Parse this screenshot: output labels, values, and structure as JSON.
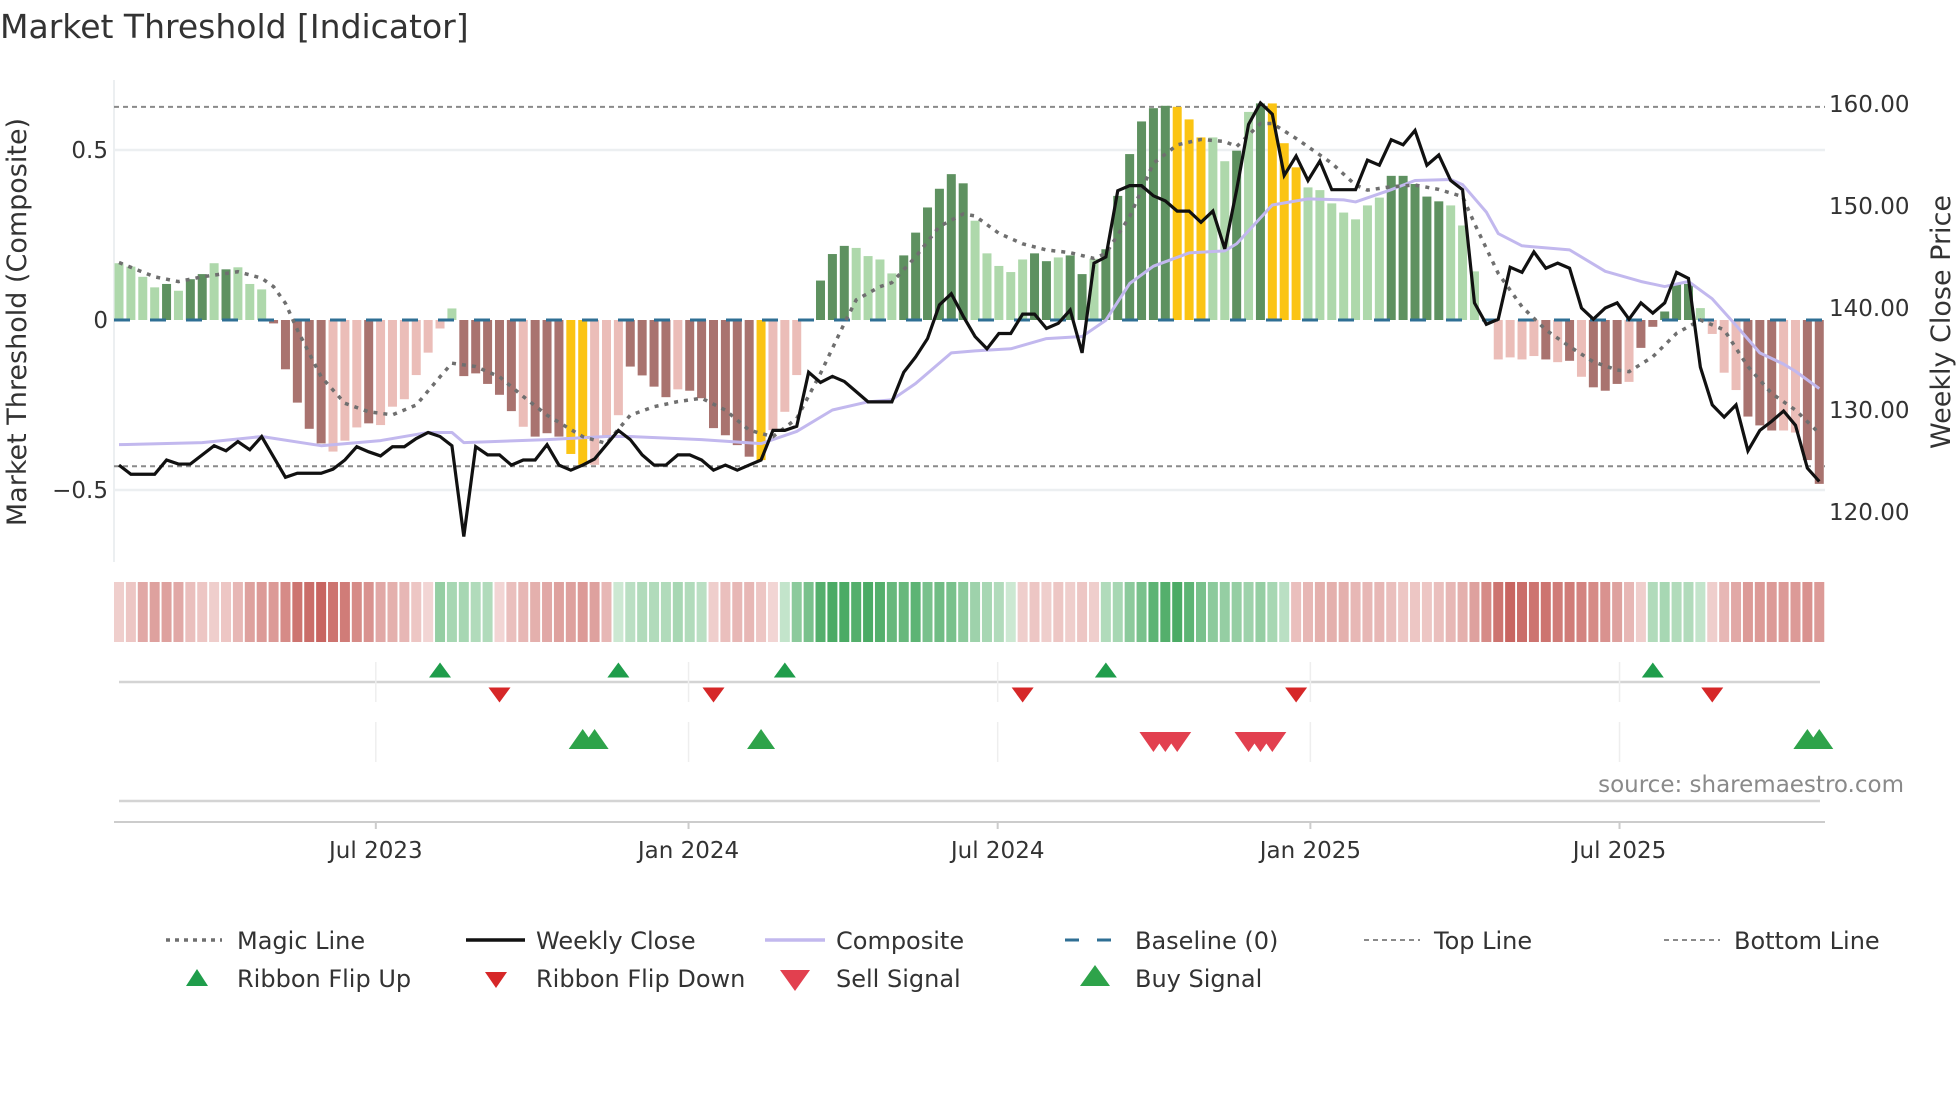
{
  "title": "Market Threshold [Indicator]",
  "source": "source: sharemaestro.com",
  "colors": {
    "bar_dark_pos": "#5e9160",
    "bar_light_pos": "#aed8ab",
    "bar_dark_neg": "#a9736f",
    "bar_light_neg": "#ebbdb8",
    "bar_signal": "#fbc413",
    "weekly_close": "#111111",
    "composite": "#c2b8ee",
    "magic": "#6f6f6f",
    "baseline": "#2f6f94",
    "threshold": "#8a8a8a",
    "flip_up": "#1f9d4b",
    "flip_down": "#d62728",
    "sell": "#e2404f",
    "buy": "#2ea34a"
  },
  "chart_data": {
    "type": "bar+line",
    "title": "Market Threshold [Indicator]",
    "ylabel_left": "Market Threshold (Composite)",
    "ylabel_right": "Weekly Close Price",
    "left_ticks": [
      {
        "value": 0.5,
        "label": "0.5"
      },
      {
        "value": 0,
        "label": "0"
      },
      {
        "value": -0.5,
        "label": "−0.5"
      }
    ],
    "right_ticks": [
      {
        "value": 160,
        "label": "160.00"
      },
      {
        "value": 150,
        "label": "150.00"
      },
      {
        "value": 140,
        "label": "140.00"
      },
      {
        "value": 130,
        "label": "130.00"
      },
      {
        "value": 120,
        "label": "120.00"
      }
    ],
    "x_ticks": [
      {
        "week": 22.6,
        "label": "Jul 2023"
      },
      {
        "week": 48.9,
        "label": "Jan 2024"
      },
      {
        "week": 74.9,
        "label": "Jul 2024"
      },
      {
        "week": 101.2,
        "label": "Jan 2025"
      },
      {
        "week": 127.2,
        "label": "Jul 2025"
      }
    ],
    "top_line": 0.627,
    "bottom_line": -0.43,
    "baseline": 0,
    "composite_bars": [
      0.167,
      0.157,
      0.127,
      0.096,
      0.106,
      0.086,
      0.12,
      0.135,
      0.167,
      0.149,
      0.155,
      0.106,
      0.09,
      -0.01,
      -0.145,
      -0.243,
      -0.32,
      -0.363,
      -0.387,
      -0.355,
      -0.316,
      -0.304,
      -0.309,
      -0.255,
      -0.233,
      -0.162,
      -0.096,
      -0.025,
      0.034,
      -0.165,
      -0.157,
      -0.188,
      -0.22,
      -0.268,
      -0.314,
      -0.343,
      -0.333,
      -0.343,
      -0.394,
      -0.426,
      -0.426,
      -0.345,
      -0.28,
      -0.137,
      -0.163,
      -0.196,
      -0.227,
      -0.204,
      -0.208,
      -0.23,
      -0.318,
      -0.339,
      -0.368,
      -0.402,
      -0.412,
      -0.324,
      -0.27,
      -0.162,
      0.004,
      0.116,
      0.194,
      0.218,
      0.212,
      0.188,
      0.178,
      0.137,
      0.19,
      0.257,
      0.331,
      0.386,
      0.429,
      0.402,
      0.292,
      0.196,
      0.159,
      0.141,
      0.178,
      0.196,
      0.173,
      0.184,
      0.19,
      0.135,
      0.18,
      0.208,
      0.365,
      0.488,
      0.584,
      0.623,
      0.63,
      0.627,
      0.59,
      0.537,
      0.537,
      0.467,
      0.498,
      0.612,
      0.637,
      0.637,
      0.52,
      0.449,
      0.39,
      0.382,
      0.343,
      0.316,
      0.296,
      0.337,
      0.36,
      0.424,
      0.424,
      0.4,
      0.363,
      0.349,
      0.337,
      0.278,
      0.143,
      0,
      -0.116,
      -0.11,
      -0.116,
      -0.106,
      -0.116,
      -0.124,
      -0.12,
      -0.167,
      -0.198,
      -0.208,
      -0.188,
      -0.182,
      -0.082,
      -0.02,
      0.025,
      0.108,
      0.106,
      0.035,
      -0.041,
      -0.155,
      -0.206,
      -0.284,
      -0.31,
      -0.325,
      -0.325,
      -0.331,
      -0.412,
      -0.482
    ],
    "bar_shades": "lllldlddldllldddddllldllllllldddddldddyylllddddlddddddylllldddllllddddddlllllddlddlddddddyyylldldyyyllllllldddddlllllllldldldddldddddlllldddlldddddldyy",
    "weekly_close": [
      124.6,
      123.7,
      123.7,
      123.7,
      125.1,
      124.7,
      124.7,
      125.6,
      126.5,
      126.0,
      126.9,
      126.1,
      127.4,
      125.4,
      123.4,
      123.8,
      123.8,
      123.8,
      124.2,
      125.1,
      126.4,
      125.9,
      125.5,
      126.4,
      126.4,
      127.2,
      127.8,
      127.4,
      126.5,
      117.6,
      126.4,
      125.6,
      125.6,
      124.6,
      125.1,
      125.1,
      126.6,
      124.6,
      124.1,
      124.6,
      125.2,
      126.6,
      128.0,
      127.1,
      125.6,
      124.6,
      124.6,
      125.6,
      125.6,
      125.1,
      124.1,
      124.6,
      124.1,
      124.6,
      125.1,
      128.0,
      128.0,
      128.4,
      133.7,
      132.7,
      133.3,
      132.8,
      131.8,
      130.8,
      130.8,
      130.8,
      133.7,
      135.2,
      137.0,
      140.3,
      141.4,
      139.2,
      137.2,
      136.0,
      137.5,
      137.5,
      139.4,
      139.4,
      138.0,
      138.5,
      139.8,
      135.6,
      144.4,
      145.0,
      151.5,
      152.0,
      152.0,
      151.0,
      150.5,
      149.5,
      149.5,
      148.4,
      149.5,
      145.8,
      151.6,
      158.0,
      160.1,
      159.0,
      153.0,
      154.9,
      152.5,
      154.4,
      151.6,
      151.6,
      151.6,
      154.5,
      154.0,
      156.5,
      156.0,
      157.4,
      154.0,
      155.0,
      152.5,
      151.6,
      140.5,
      138.4,
      138.9,
      144.0,
      143.5,
      145.5,
      143.9,
      144.4,
      143.9,
      140.0,
      138.9,
      140.0,
      140.5,
      138.9,
      140.5,
      139.5,
      140.5,
      143.5,
      142.9,
      134.2,
      130.5,
      129.3,
      130.5,
      126.0,
      128.0,
      128.9,
      129.9,
      128.5,
      124.3,
      123.0
    ],
    "composite_line": [
      [
        1,
        126.6
      ],
      [
        8,
        126.8
      ],
      [
        13,
        127.4
      ],
      [
        18,
        126.5
      ],
      [
        23,
        127.0
      ],
      [
        27,
        127.8
      ],
      [
        29,
        127.8
      ],
      [
        30,
        126.8
      ],
      [
        37,
        127.1
      ],
      [
        42,
        127.4
      ],
      [
        44,
        127.4
      ],
      [
        50,
        127.1
      ],
      [
        55,
        126.7
      ],
      [
        58,
        127.9
      ],
      [
        61,
        130.0
      ],
      [
        64,
        130.8
      ],
      [
        66,
        131.0
      ],
      [
        68,
        132.6
      ],
      [
        71,
        135.6
      ],
      [
        73,
        135.8
      ],
      [
        76,
        136.0
      ],
      [
        79,
        137.0
      ],
      [
        82,
        137.2
      ],
      [
        84,
        138.8
      ],
      [
        86,
        142.4
      ],
      [
        88,
        144.1
      ],
      [
        91,
        145.4
      ],
      [
        94,
        145.6
      ],
      [
        95,
        146.3
      ],
      [
        98,
        150.1
      ],
      [
        101,
        150.7
      ],
      [
        104,
        150.6
      ],
      [
        105,
        150.4
      ],
      [
        108,
        151.6
      ],
      [
        110,
        152.5
      ],
      [
        113,
        152.6
      ],
      [
        114,
        152.1
      ],
      [
        116,
        149.4
      ],
      [
        117,
        147.3
      ],
      [
        119,
        146.1
      ],
      [
        123,
        145.7
      ],
      [
        126,
        143.6
      ],
      [
        129,
        142.6
      ],
      [
        131,
        142.1
      ],
      [
        133,
        142.6
      ],
      [
        135,
        140.9
      ],
      [
        137,
        138.3
      ],
      [
        139,
        135.6
      ],
      [
        141,
        134.5
      ],
      [
        142,
        133.8
      ],
      [
        144,
        132.1
      ]
    ],
    "magic_line": [
      [
        1,
        0.169
      ],
      [
        4,
        0.127
      ],
      [
        6,
        0.113
      ],
      [
        8,
        0.127
      ],
      [
        11,
        0.142
      ],
      [
        13,
        0.123
      ],
      [
        14,
        0.098
      ],
      [
        15,
        0.049
      ],
      [
        16,
        -0.029
      ],
      [
        18,
        -0.167
      ],
      [
        20,
        -0.245
      ],
      [
        22,
        -0.27
      ],
      [
        24,
        -0.279
      ],
      [
        26,
        -0.25
      ],
      [
        28,
        -0.167
      ],
      [
        29,
        -0.127
      ],
      [
        31,
        -0.137
      ],
      [
        33,
        -0.167
      ],
      [
        35,
        -0.225
      ],
      [
        37,
        -0.28
      ],
      [
        40,
        -0.343
      ],
      [
        42,
        -0.363
      ],
      [
        44,
        -0.28
      ],
      [
        46,
        -0.255
      ],
      [
        48,
        -0.24
      ],
      [
        50,
        -0.23
      ],
      [
        52,
        -0.265
      ],
      [
        54,
        -0.324
      ],
      [
        56,
        -0.343
      ],
      [
        58,
        -0.29
      ],
      [
        60,
        -0.157
      ],
      [
        62,
        -0.01
      ],
      [
        63,
        0.059
      ],
      [
        65,
        0.098
      ],
      [
        66,
        0.11
      ],
      [
        68,
        0.186
      ],
      [
        70,
        0.275
      ],
      [
        72,
        0.312
      ],
      [
        73,
        0.306
      ],
      [
        75,
        0.255
      ],
      [
        77,
        0.224
      ],
      [
        79,
        0.206
      ],
      [
        81,
        0.198
      ],
      [
        83,
        0.181
      ],
      [
        84,
        0.196
      ],
      [
        86,
        0.304
      ],
      [
        88,
        0.461
      ],
      [
        90,
        0.515
      ],
      [
        92,
        0.531
      ],
      [
        94,
        0.525
      ],
      [
        95,
        0.51
      ],
      [
        97,
        0.578
      ],
      [
        98,
        0.578
      ],
      [
        100,
        0.534
      ],
      [
        103,
        0.461
      ],
      [
        105,
        0.397
      ],
      [
        106,
        0.382
      ],
      [
        108,
        0.392
      ],
      [
        110,
        0.397
      ],
      [
        112,
        0.384
      ],
      [
        114,
        0.363
      ],
      [
        115,
        0.284
      ],
      [
        117,
        0.137
      ],
      [
        119,
        0.039
      ],
      [
        121,
        -0.029
      ],
      [
        123,
        -0.078
      ],
      [
        125,
        -0.123
      ],
      [
        127,
        -0.147
      ],
      [
        128,
        -0.152
      ],
      [
        130,
        -0.108
      ],
      [
        132,
        -0.039
      ],
      [
        134,
        0
      ],
      [
        136,
        -0.029
      ],
      [
        138,
        -0.137
      ],
      [
        140,
        -0.216
      ],
      [
        142,
        -0.265
      ],
      [
        144,
        -0.333
      ]
    ],
    "ribbon": [
      -0.15,
      -0.2,
      -0.4,
      -0.45,
      -0.45,
      -0.4,
      -0.25,
      -0.2,
      -0.15,
      -0.2,
      -0.3,
      -0.45,
      -0.5,
      -0.5,
      -0.6,
      -0.75,
      -0.8,
      -0.85,
      -0.75,
      -0.7,
      -0.6,
      -0.55,
      -0.4,
      -0.35,
      -0.3,
      -0.2,
      -0.1,
      0.45,
      0.35,
      0.35,
      0.3,
      0.3,
      -0.1,
      -0.25,
      -0.3,
      -0.35,
      -0.4,
      -0.45,
      -0.45,
      -0.5,
      -0.45,
      -0.3,
      0.15,
      0.25,
      0.3,
      0.3,
      0.3,
      0.35,
      0.3,
      0.25,
      -0.15,
      -0.25,
      -0.3,
      -0.3,
      -0.2,
      -0.1,
      0.2,
      0.5,
      0.6,
      0.8,
      0.85,
      0.85,
      0.8,
      0.85,
      0.8,
      0.7,
      0.7,
      0.75,
      0.6,
      0.65,
      0.6,
      0.5,
      0.4,
      0.35,
      0.3,
      0.15,
      -0.15,
      -0.2,
      -0.15,
      -0.2,
      -0.15,
      -0.2,
      -0.15,
      0.3,
      0.35,
      0.5,
      0.6,
      0.75,
      0.8,
      0.85,
      0.75,
      0.6,
      0.5,
      0.45,
      0.45,
      0.4,
      0.45,
      0.35,
      0.25,
      -0.25,
      -0.3,
      -0.35,
      -0.35,
      -0.35,
      -0.3,
      -0.3,
      -0.3,
      -0.25,
      -0.2,
      -0.2,
      -0.2,
      -0.25,
      -0.3,
      -0.35,
      -0.45,
      -0.6,
      -0.75,
      -0.85,
      -0.8,
      -0.75,
      -0.75,
      -0.7,
      -0.7,
      -0.65,
      -0.6,
      -0.55,
      -0.45,
      -0.3,
      -0.15,
      0.3,
      0.35,
      0.3,
      0.3,
      0.2,
      -0.15,
      -0.3,
      -0.4,
      -0.5,
      -0.5,
      -0.5,
      -0.5,
      -0.5,
      -0.55,
      -0.5
    ],
    "ribbon_flip_up": [
      28,
      43,
      57,
      84,
      130
    ],
    "ribbon_flip_down": [
      33,
      51,
      77,
      100,
      135
    ],
    "buy_signals": [
      40,
      41,
      55,
      143,
      144
    ],
    "sell_signals": [
      88,
      89,
      90,
      96,
      97,
      98
    ],
    "legend": {
      "magic": "Magic Line",
      "close": "Weekly Close",
      "composite": "Composite",
      "baseline": "Baseline (0)",
      "top": "Top Line",
      "bottom": "Bottom Line",
      "flip_up": "Ribbon Flip Up",
      "flip_down": "Ribbon Flip Down",
      "sell": "Sell Signal",
      "buy": "Buy Signal"
    },
    "legend_position": "bottom"
  }
}
